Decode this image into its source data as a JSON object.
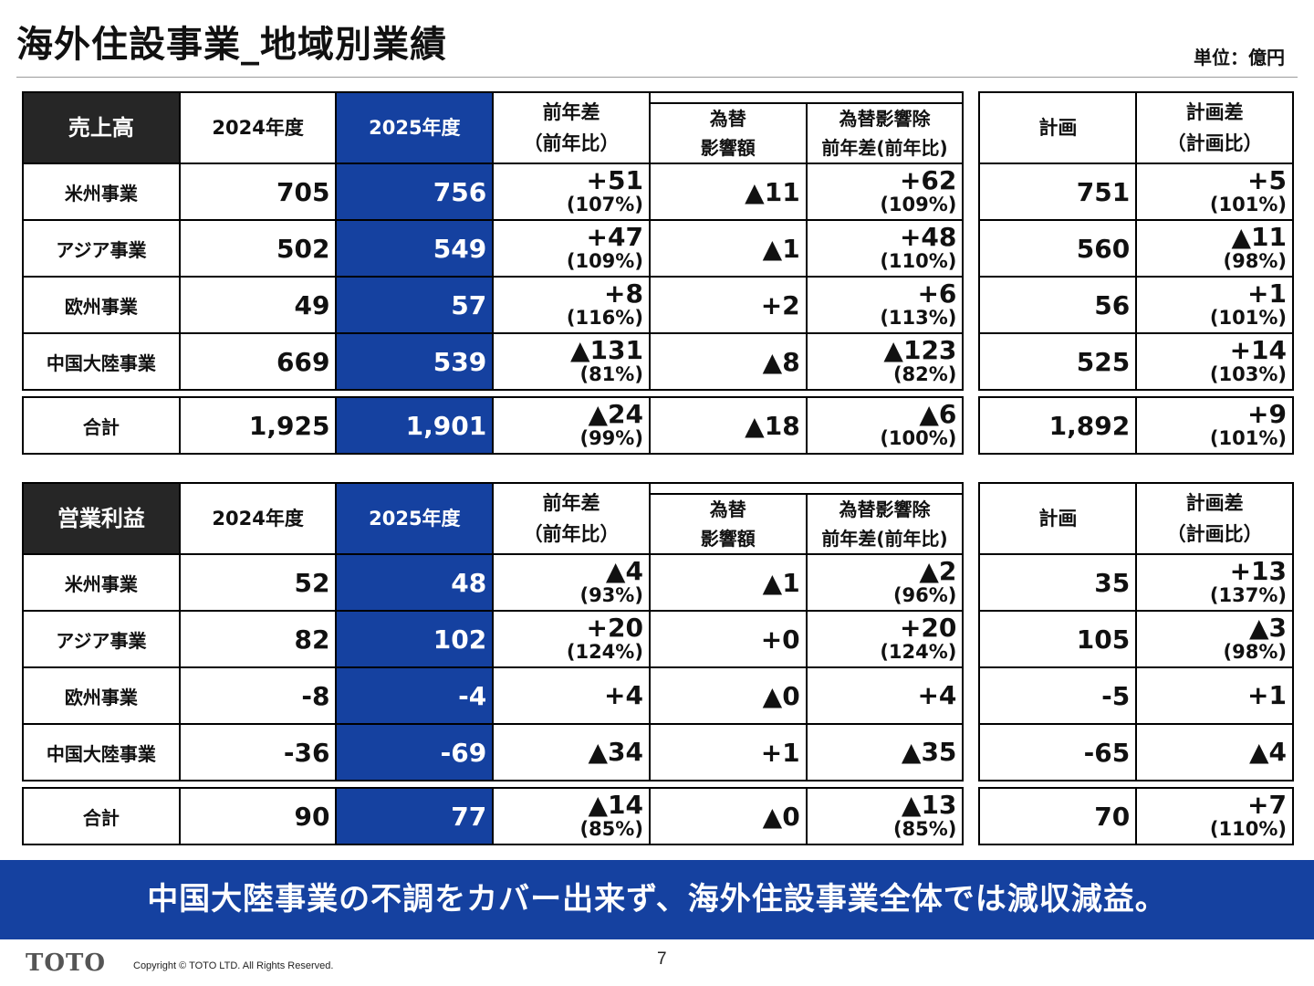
{
  "title": "海外住設事業_地域別業績",
  "unit": "単位：億円",
  "headers": {
    "y2024": "2024年度",
    "y2025": "2025年度",
    "diff_line1": "前年差",
    "diff_line2": "（前年比）",
    "fx_line1": "為替",
    "fx_line2": "影響額",
    "exfx_line1": "為替影響除",
    "exfx_line2": "前年差(前年比)",
    "plan": "計画",
    "plandiff_line1": "計画差",
    "plandiff_line2": "（計画比）"
  },
  "sales": {
    "label": "売上高",
    "rows": [
      {
        "name": "米州事業",
        "y2024": "705",
        "y2025": "756",
        "diff": "+51",
        "diff_pct": "(107%)",
        "fx": "▲11",
        "exfx": "+62",
        "exfx_pct": "(109%)",
        "plan": "751",
        "plan_diff": "+5",
        "plan_pct": "(101%)"
      },
      {
        "name": "アジア事業",
        "y2024": "502",
        "y2025": "549",
        "diff": "+47",
        "diff_pct": "(109%)",
        "fx": "▲1",
        "exfx": "+48",
        "exfx_pct": "(110%)",
        "plan": "560",
        "plan_diff": "▲11",
        "plan_pct": "(98%)"
      },
      {
        "name": "欧州事業",
        "y2024": "49",
        "y2025": "57",
        "diff": "+8",
        "diff_pct": "(116%)",
        "fx": "+2",
        "exfx": "+6",
        "exfx_pct": "(113%)",
        "plan": "56",
        "plan_diff": "+1",
        "plan_pct": "(101%)"
      },
      {
        "name": "中国大陸事業",
        "y2024": "669",
        "y2025": "539",
        "diff": "▲131",
        "diff_pct": "(81%)",
        "fx": "▲8",
        "exfx": "▲123",
        "exfx_pct": "(82%)",
        "plan": "525",
        "plan_diff": "+14",
        "plan_pct": "(103%)"
      }
    ],
    "total": {
      "name": "合計",
      "y2024": "1,925",
      "y2025": "1,901",
      "diff": "▲24",
      "diff_pct": "(99%)",
      "fx": "▲18",
      "exfx": "▲6",
      "exfx_pct": "(100%)",
      "plan": "1,892",
      "plan_diff": "+9",
      "plan_pct": "(101%)"
    }
  },
  "profit": {
    "label": "営業利益",
    "rows": [
      {
        "name": "米州事業",
        "y2024": "52",
        "y2025": "48",
        "diff": "▲4",
        "diff_pct": "(93%)",
        "fx": "▲1",
        "exfx": "▲2",
        "exfx_pct": "(96%)",
        "plan": "35",
        "plan_diff": "+13",
        "plan_pct": "(137%)"
      },
      {
        "name": "アジア事業",
        "y2024": "82",
        "y2025": "102",
        "diff": "+20",
        "diff_pct": "(124%)",
        "fx": "+0",
        "exfx": "+20",
        "exfx_pct": "(124%)",
        "plan": "105",
        "plan_diff": "▲3",
        "plan_pct": "(98%)"
      },
      {
        "name": "欧州事業",
        "y2024": "-8",
        "y2025": "-4",
        "diff": "+4",
        "diff_pct": "",
        "fx": "▲0",
        "exfx": "+4",
        "exfx_pct": "",
        "plan": "-5",
        "plan_diff": "+1",
        "plan_pct": ""
      },
      {
        "name": "中国大陸事業",
        "y2024": "-36",
        "y2025": "-69",
        "diff": "▲34",
        "diff_pct": "",
        "fx": "+1",
        "exfx": "▲35",
        "exfx_pct": "",
        "plan": "-65",
        "plan_diff": "▲4",
        "plan_pct": ""
      }
    ],
    "total": {
      "name": "合計",
      "y2024": "90",
      "y2025": "77",
      "diff": "▲14",
      "diff_pct": "(85%)",
      "fx": "▲0",
      "exfx": "▲13",
      "exfx_pct": "(85%)",
      "plan": "70",
      "plan_diff": "+7",
      "plan_pct": "(110%)"
    }
  },
  "banner": "中国大陸事業の不調をカバー出来ず、海外住設事業全体では減収減益。",
  "footer": {
    "logo": "TOTO",
    "copyright": "Copyright © TOTO LTD. All Rights Reserved.",
    "page": "7"
  }
}
